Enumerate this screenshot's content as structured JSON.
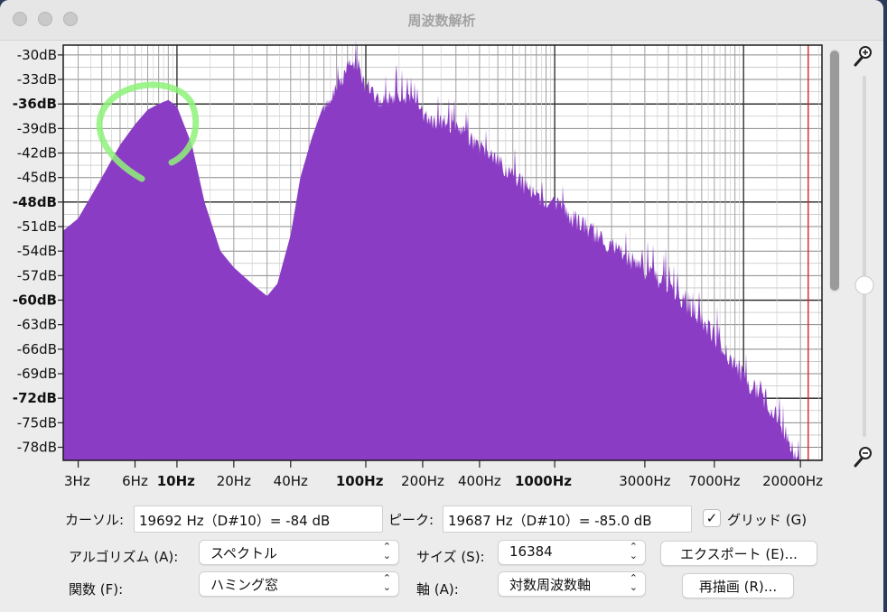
{
  "window": {
    "title": "周波数解析"
  },
  "spectrum": {
    "db_ticks": [
      "-30dB",
      "-33dB",
      "-36dB",
      "-39dB",
      "-42dB",
      "-45dB",
      "-48dB",
      "-51dB",
      "-54dB",
      "-57dB",
      "-60dB",
      "-63dB",
      "-66dB",
      "-69dB",
      "-72dB",
      "-75dB",
      "-78dB"
    ],
    "db_values": [
      -30,
      -33,
      -36,
      -39,
      -42,
      -45,
      -48,
      -51,
      -54,
      -57,
      -60,
      -63,
      -66,
      -69,
      -72,
      -75,
      -78
    ],
    "db_bold": [
      -36,
      -48,
      -60,
      -72
    ],
    "freq_ticks": [
      {
        "f": 3,
        "label": "3Hz"
      },
      {
        "f": 6,
        "label": "6Hz"
      },
      {
        "f": 10,
        "label": "10Hz"
      },
      {
        "f": 20,
        "label": "20Hz"
      },
      {
        "f": 40,
        "label": "40Hz"
      },
      {
        "f": 100,
        "label": "100Hz"
      },
      {
        "f": 200,
        "label": "200Hz"
      },
      {
        "f": 400,
        "label": "400Hz"
      },
      {
        "f": 1000,
        "label": "1000Hz"
      },
      {
        "f": 3000,
        "label": "3000Hz"
      },
      {
        "f": 7000,
        "label": "7000Hz"
      },
      {
        "f": 20000,
        "label": "20000Hz"
      }
    ],
    "fill_color": "#8a3dc4",
    "cursor_color": "#e02020",
    "annotation_color": "#8ef27a",
    "cursor_freq": 19692
  },
  "controls": {
    "cursor_label": "カーソル:",
    "cursor_value": "19692 Hz（D#10）= -84 dB",
    "peak_label": "ピーク:",
    "peak_value": "19687 Hz（D#10）= -85.0 dB",
    "grid_checked": "✓",
    "grid_label": "グリッド (G)",
    "algorithm_label": "アルゴリズム (A):",
    "algorithm_value": "スペクトル",
    "size_label": "サイズ (S):",
    "size_value": "16384",
    "export_button": "エクスポート (E)...",
    "function_label": "関数 (F):",
    "function_value": "ハミング窓",
    "axis_label": "軸 (A):",
    "axis_value": "対数周波数軸",
    "replot_button": "再描画 (R)..."
  },
  "icons": {
    "zoom_in": "zoom-in-icon",
    "zoom_out": "zoom-out-icon"
  }
}
